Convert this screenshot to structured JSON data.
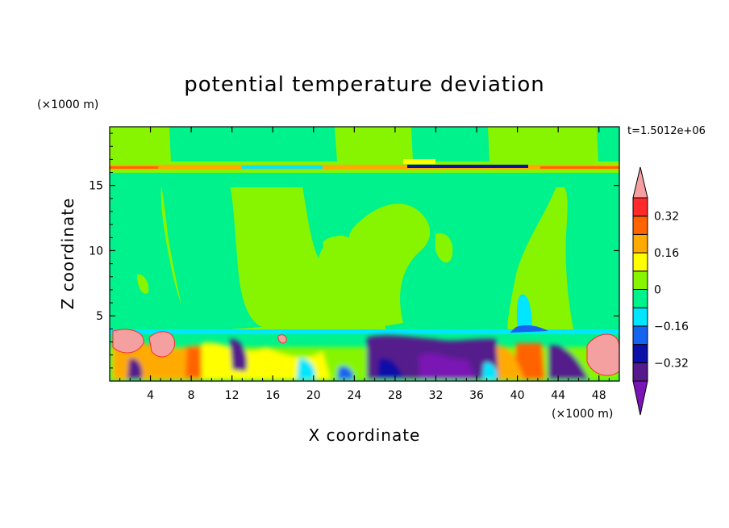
{
  "chart_data": {
    "type": "heatmap",
    "title": "potential temperature deviation",
    "xlabel": "X coordinate",
    "ylabel": "Z coordinate",
    "x_unit": "(×1000 m)",
    "y_unit": "(×1000 m)",
    "time_label": "t=1.5012e+06",
    "xlim": [
      0,
      50
    ],
    "ylim": [
      0,
      19.5
    ],
    "x_ticks": [
      4,
      8,
      12,
      16,
      20,
      24,
      28,
      32,
      36,
      40,
      44,
      48
    ],
    "y_ticks": [
      5,
      10,
      15
    ],
    "colorbar": {
      "levels": [
        -0.4,
        -0.32,
        -0.24,
        -0.16,
        -0.08,
        0,
        0.08,
        0.16,
        0.24,
        0.32,
        0.4
      ],
      "labels": [
        "-0.32",
        "-0.16",
        "0",
        "0.16",
        "0.32"
      ],
      "colors": [
        "#7a14b4",
        "#551a8b",
        "#0a10a8",
        "#1464f0",
        "#00e6ff",
        "#00f28c",
        "#87f500",
        "#ffff00",
        "#ffaa00",
        "#ff6400",
        "#ff2a2a",
        "#f5a0a0"
      ],
      "extend": "both"
    },
    "fields": {
      "upper_background_level": 0,
      "tropopause_band": {
        "z_range": [
          16.6,
          17.2
        ],
        "level": "positive"
      },
      "boundary_layer": {
        "z_range": [
          0,
          4
        ],
        "level": "mixed"
      }
    }
  }
}
